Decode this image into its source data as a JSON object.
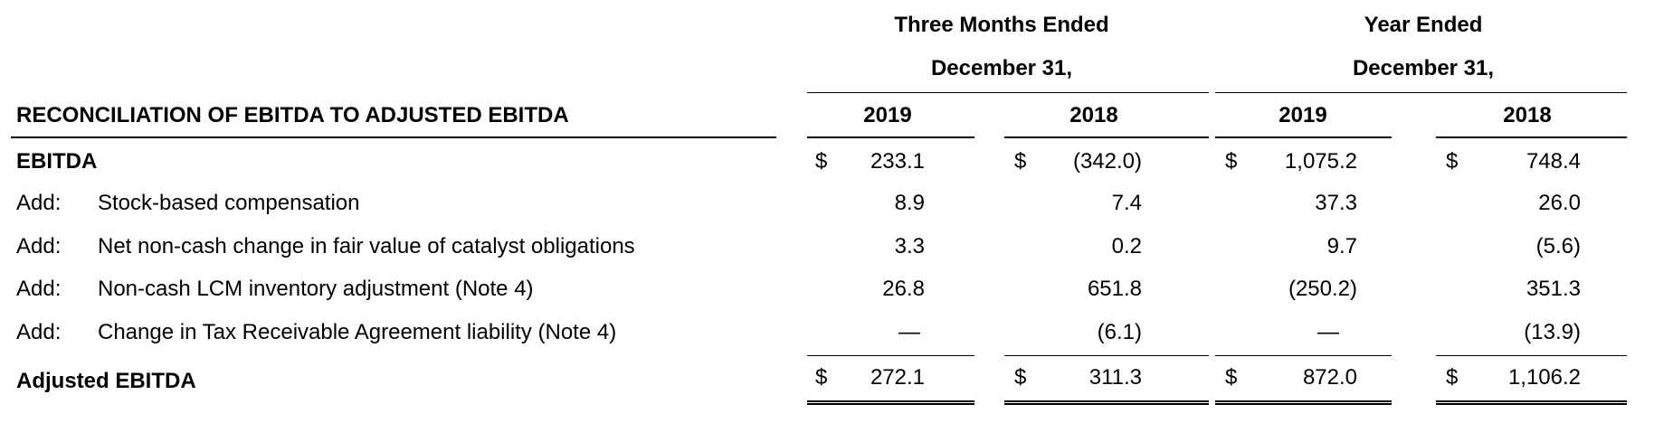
{
  "header": {
    "group1_line1": "Three Months Ended",
    "group1_line2": "December 31,",
    "group2_line1": "Year Ended",
    "group2_line2": "December 31,",
    "title": "RECONCILIATION OF EBITDA TO ADJUSTED EBITDA",
    "years": [
      "2019",
      "2018",
      "2019",
      "2018"
    ]
  },
  "rows": [
    {
      "prefix": "",
      "label": "EBITDA",
      "values": [
        "233.1",
        "(342.0)",
        "1,075.2",
        "748.4"
      ]
    },
    {
      "prefix": "Add:",
      "label": "Stock-based compensation",
      "values": [
        "8.9",
        "7.4",
        "37.3",
        "26.0"
      ]
    },
    {
      "prefix": "Add:",
      "label": "Net non-cash change in fair value of catalyst obligations",
      "values": [
        "3.3",
        "0.2",
        "9.7",
        "(5.6)"
      ]
    },
    {
      "prefix": "Add:",
      "label": "Non-cash LCM inventory adjustment (Note 4)",
      "values": [
        "26.8",
        "651.8",
        "(250.2)",
        "351.3"
      ]
    },
    {
      "prefix": "Add:",
      "label": "Change in Tax Receivable Agreement liability (Note 4)",
      "values": [
        "—",
        "(6.1)",
        "—",
        "(13.9)"
      ]
    },
    {
      "prefix": "",
      "label": "Adjusted EBITDA",
      "values": [
        "272.1",
        "311.3",
        "872.0",
        "1,106.2"
      ]
    }
  ],
  "currency_symbol": "$"
}
